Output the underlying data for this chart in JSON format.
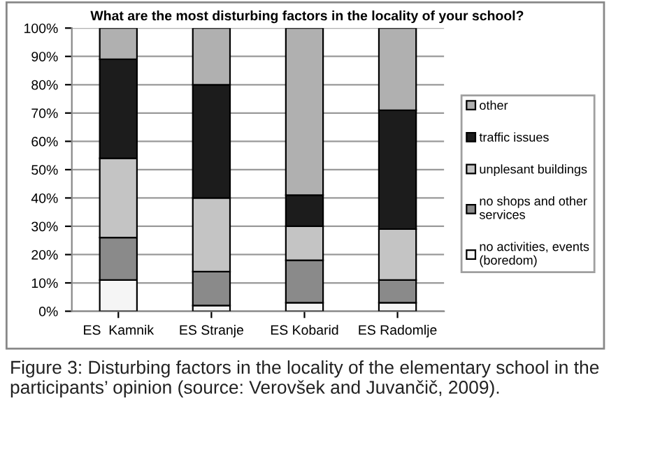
{
  "chart_data": {
    "type": "bar",
    "stacked": true,
    "title": "What are the most disturbing factors in the locality of your school?",
    "categories": [
      "ES  Kamnik",
      "ES Stranje",
      "ES Kobarid",
      "ES Radomlje"
    ],
    "series": [
      {
        "name": "no activities, events\n(boredom)",
        "color": "#f5f5f5",
        "values": [
          11,
          2,
          3,
          3
        ]
      },
      {
        "name": "no shops and other\nservices",
        "color": "#8a8a8a",
        "values": [
          15,
          12,
          15,
          8
        ]
      },
      {
        "name": "unplesant buildings",
        "color": "#c4c4c4",
        "values": [
          28,
          26,
          12,
          18
        ]
      },
      {
        "name": "traffic issues",
        "color": "#1c1c1c",
        "values": [
          35,
          40,
          11,
          42
        ]
      },
      {
        "name": "other",
        "color": "#b0b0b0",
        "values": [
          11,
          20,
          59,
          29
        ]
      }
    ],
    "ylim": [
      0,
      100
    ],
    "yticks": [
      {
        "value": 0,
        "label": "0%"
      },
      {
        "value": 10,
        "label": "10%"
      },
      {
        "value": 20,
        "label": "20%"
      },
      {
        "value": 30,
        "label": "30%"
      },
      {
        "value": 40,
        "label": "40%"
      },
      {
        "value": 50,
        "label": "50%"
      },
      {
        "value": 60,
        "label": "60%"
      },
      {
        "value": 70,
        "label": "70%"
      },
      {
        "value": 80,
        "label": "80%"
      },
      {
        "value": 90,
        "label": "90%"
      },
      {
        "value": 100,
        "label": "100%"
      }
    ],
    "grid": "y",
    "legend": "right",
    "annotations": [
      "Figure 3: Disturbing factors in the locality of the elementary school in the participants’ opinion (source: Verovšek and Juvančič, 2009)."
    ]
  }
}
